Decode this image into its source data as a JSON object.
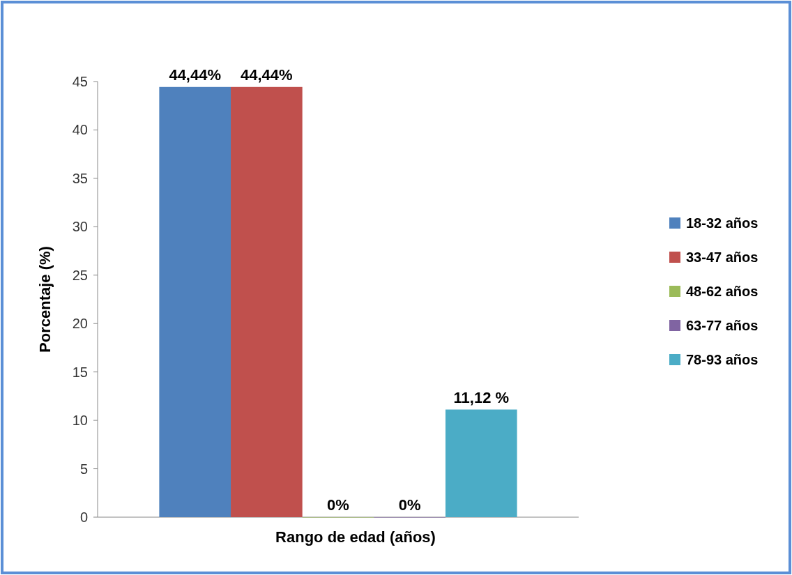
{
  "chart_data": {
    "type": "bar",
    "xlabel": "Rango de edad (años)",
    "ylabel": "Porcentaje (%)",
    "categories": [
      null
    ],
    "series": [
      {
        "name": "18-32 años",
        "color": "#4f81bd",
        "values": [
          44.44
        ],
        "value_labels": [
          "44,44%"
        ]
      },
      {
        "name": "33-47 años",
        "color": "#c0504d",
        "values": [
          44.44
        ],
        "value_labels": [
          "44,44%"
        ]
      },
      {
        "name": "48-62 años",
        "color": "#9bbb59",
        "values": [
          0
        ],
        "value_labels": [
          "0%"
        ]
      },
      {
        "name": "63-77 años",
        "color": "#8064a2",
        "values": [
          0
        ],
        "value_labels": [
          "0%"
        ]
      },
      {
        "name": "78-93 años",
        "color": "#4bacc6",
        "values": [
          11.12
        ],
        "value_labels": [
          "11,12 %"
        ]
      }
    ],
    "ylim": [
      0,
      45
    ],
    "yticks": [
      0,
      5,
      10,
      15,
      20,
      25,
      30,
      35,
      40,
      45
    ],
    "grid": false,
    "legend": "right"
  }
}
